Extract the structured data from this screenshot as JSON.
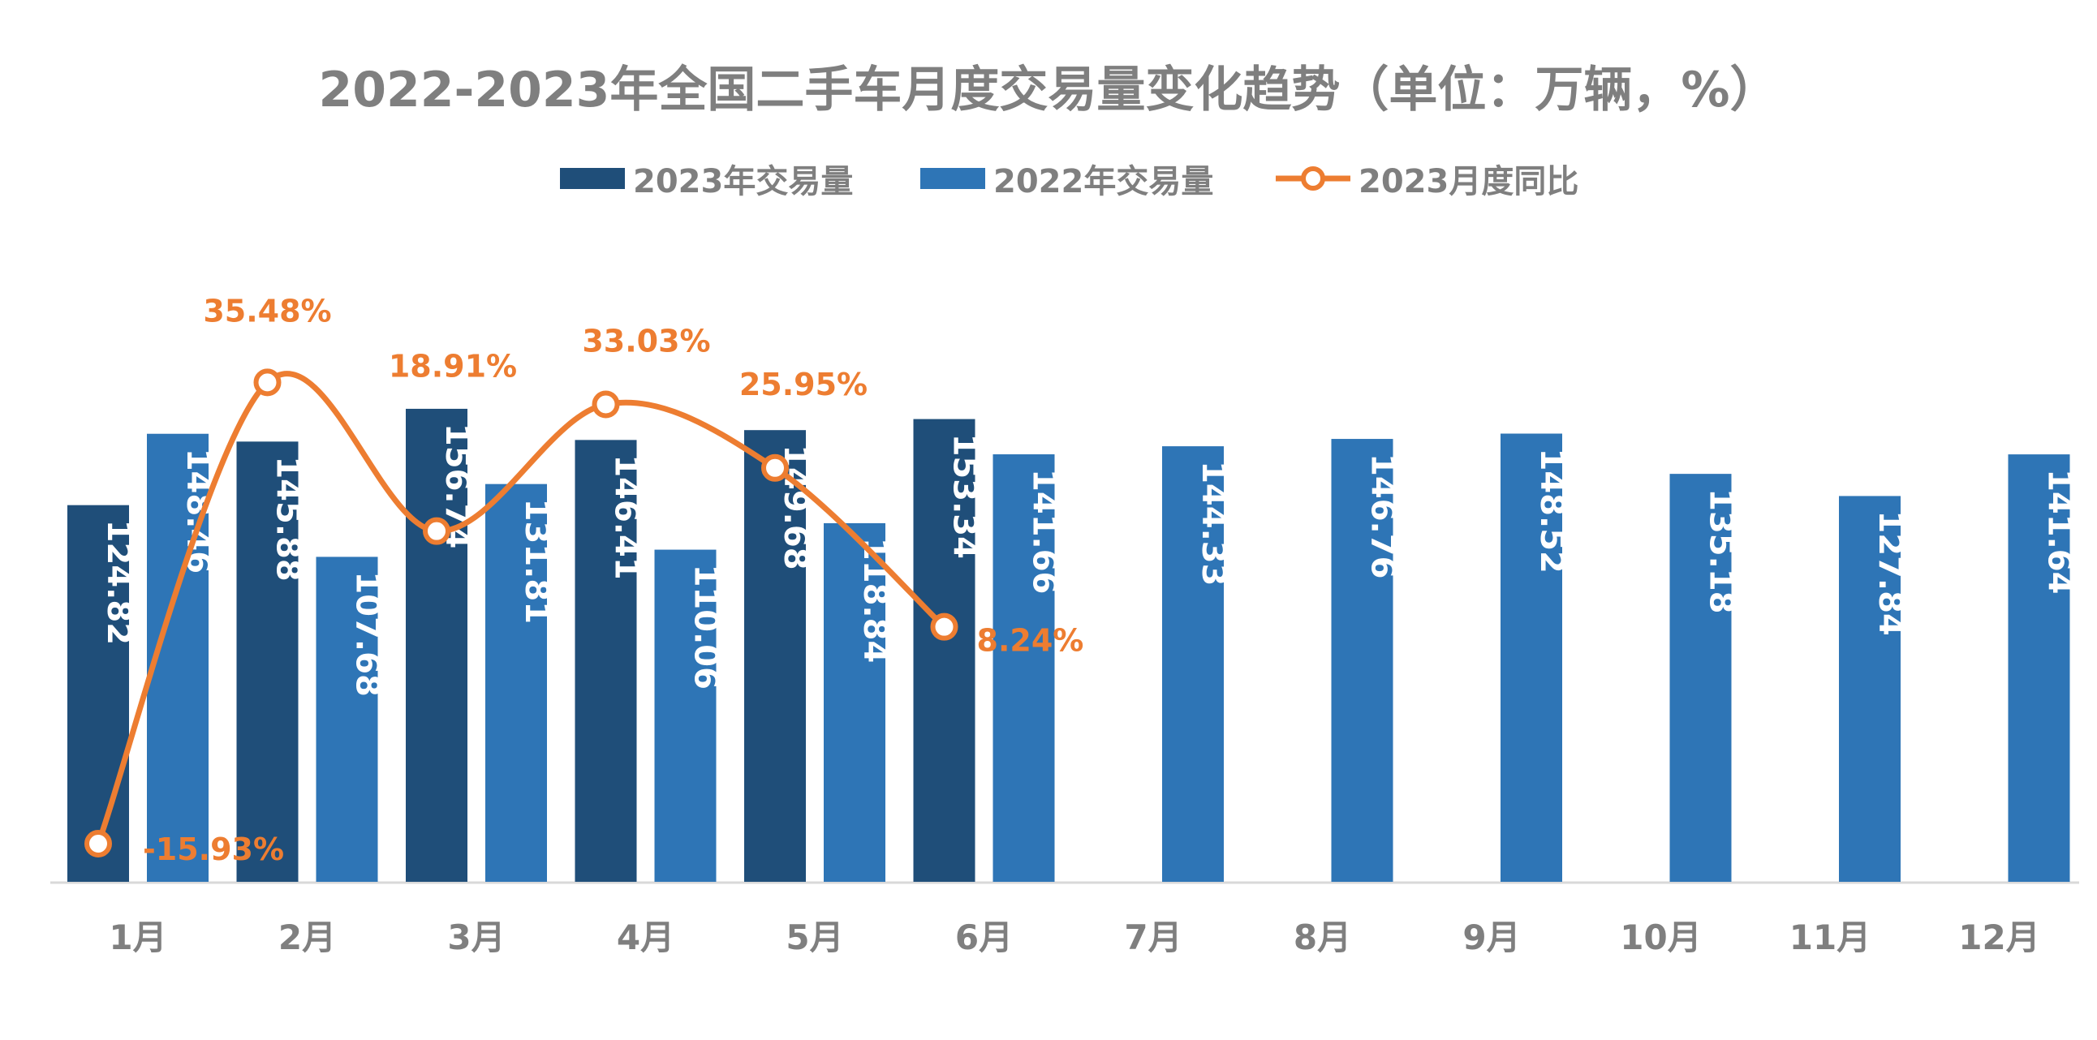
{
  "chart_data": {
    "type": "bar",
    "title": "2022-2023年全国二手车月度交易量变化趋势（单位：万辆，%）",
    "categories": [
      "1月",
      "2月",
      "3月",
      "4月",
      "5月",
      "6月",
      "7月",
      "8月",
      "9月",
      "10月",
      "11月",
      "12月"
    ],
    "series": [
      {
        "name": "2023年交易量",
        "type": "bar",
        "color": "#1f4e79",
        "values": [
          124.82,
          145.88,
          156.74,
          146.41,
          149.68,
          153.34,
          null,
          null,
          null,
          null,
          null,
          null
        ],
        "labels": [
          "124.82",
          "145.88",
          "156.74",
          "146.41",
          "149.68",
          "153.34",
          "",
          "",
          "",
          "",
          "",
          ""
        ]
      },
      {
        "name": "2022年交易量",
        "type": "bar",
        "color": "#2e75b6",
        "values": [
          148.46,
          107.68,
          131.81,
          110.06,
          118.84,
          141.66,
          144.33,
          146.76,
          148.52,
          135.18,
          127.84,
          141.64
        ],
        "labels": [
          "148.46",
          "107.68",
          "131.81",
          "110.06",
          "118.84",
          "141.66",
          "144.33",
          "146.76",
          "148.52",
          "135.18",
          "127.84",
          "141.64"
        ]
      },
      {
        "name": "2023月度同比",
        "type": "line",
        "color": "#ed7d31",
        "values": [
          -15.93,
          35.48,
          18.91,
          33.03,
          25.95,
          8.24,
          null,
          null,
          null,
          null,
          null,
          null
        ],
        "labels": [
          "-15.93%",
          "35.48%",
          "18.91%",
          "33.03%",
          "25.95%",
          "8.24%",
          "",
          "",
          "",
          "",
          "",
          ""
        ]
      }
    ],
    "ylim_bars": [
      0,
      160
    ],
    "ylim_line": [
      -20,
      40
    ],
    "grid": false,
    "legend_position": "top-center"
  }
}
